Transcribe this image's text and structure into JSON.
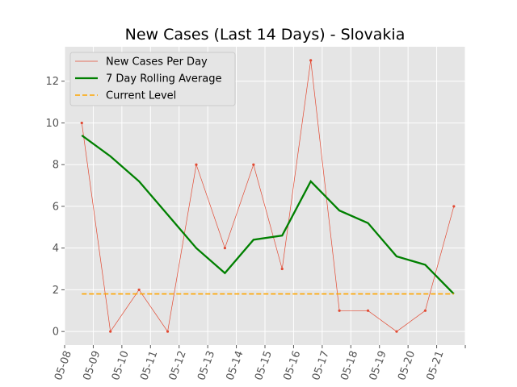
{
  "chart_data": {
    "type": "line",
    "title": "New Cases (Last 14 Days) - Slovakia",
    "xlabel": "",
    "ylabel": "",
    "x_ticks": [
      "05-08",
      "05-09",
      "05-10",
      "05-11",
      "05-12",
      "05-13",
      "05-14",
      "05-15",
      "05-16",
      "05-17",
      "05-18",
      "05-19",
      "05-20",
      "05-21"
    ],
    "y_ticks": [
      0,
      2,
      4,
      6,
      8,
      10,
      12
    ],
    "xlim": [
      0,
      14
    ],
    "ylim": [
      -0.65,
      13.65
    ],
    "grid": true,
    "legend_position": "top-left",
    "series": [
      {
        "name": "New Cases Per Day",
        "color": "#e24a33",
        "style": "thin-line-with-dots",
        "x": [
          0.6,
          1.6,
          2.6,
          3.6,
          4.6,
          5.6,
          6.6,
          7.6,
          8.6,
          9.6,
          10.6,
          11.6,
          12.6,
          13.6
        ],
        "values": [
          10,
          0,
          2,
          0,
          8,
          4,
          8,
          3,
          13,
          1,
          1,
          0,
          1,
          6
        ]
      },
      {
        "name": "7 Day Rolling Average",
        "color": "#008000",
        "style": "thick-line",
        "x": [
          0.6,
          1.6,
          2.6,
          3.6,
          4.6,
          5.6,
          6.6,
          7.6,
          8.6,
          9.6,
          10.6,
          11.6,
          12.6,
          13.6
        ],
        "values": [
          9.4,
          8.4,
          7.2,
          5.6,
          4.0,
          2.8,
          4.4,
          4.6,
          7.2,
          5.8,
          5.2,
          3.6,
          3.2,
          1.8
        ]
      },
      {
        "name": "Current Level",
        "color": "#ffa500",
        "style": "dashed",
        "x": [
          0.6,
          13.6
        ],
        "values": [
          1.8,
          1.8
        ]
      }
    ]
  }
}
